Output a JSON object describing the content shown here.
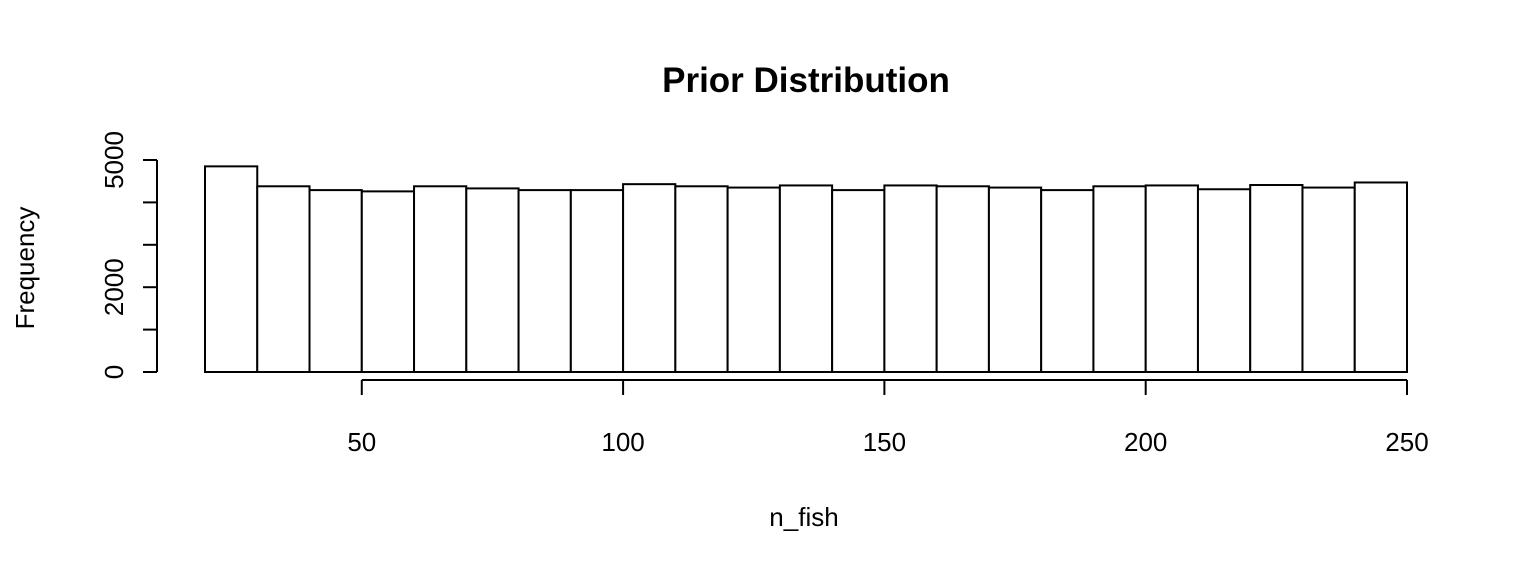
{
  "chart_data": {
    "type": "bar",
    "title": "Prior Distribution",
    "xlabel": "n_fish",
    "ylabel": "Frequency",
    "bin_edges": [
      20,
      30,
      40,
      50,
      60,
      70,
      80,
      90,
      100,
      110,
      120,
      130,
      140,
      150,
      160,
      170,
      180,
      190,
      200,
      210,
      220,
      230,
      240,
      250
    ],
    "values": [
      4850,
      4380,
      4290,
      4260,
      4380,
      4330,
      4290,
      4290,
      4430,
      4380,
      4350,
      4400,
      4290,
      4400,
      4380,
      4350,
      4290,
      4380,
      4400,
      4310,
      4410,
      4350,
      4470
    ],
    "xticks": [
      50,
      100,
      150,
      200,
      250
    ],
    "xtick_labels": [
      "50",
      "100",
      "150",
      "200",
      "250"
    ],
    "yticks": [
      0,
      1000,
      2000,
      3000,
      4000,
      5000
    ],
    "ytick_labels": [
      "0",
      "",
      "2000",
      "",
      "",
      "5000"
    ],
    "xlim": [
      20,
      250
    ],
    "ylim": [
      0,
      5000
    ],
    "grid": false,
    "legend": "none",
    "bar_fill": "#ffffff",
    "bar_stroke": "#000000"
  }
}
